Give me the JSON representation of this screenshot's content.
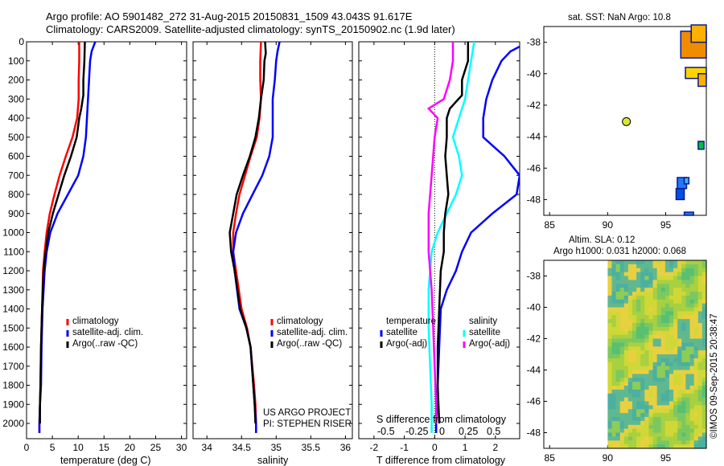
{
  "header": {
    "line1": "Argo profile: AO 5901482_272 31-Aug-2015 20150831_1509 43.043S 91.617E",
    "line2": "Climatology: CARS2009. Satellite-adjusted climatology: synTS_20150902.nc (1.9d later)"
  },
  "colors": {
    "climatology": "#ff0000",
    "satellite": "#0000ff",
    "argo": "#000000",
    "sat_diff": "#00ffff",
    "argo_s_diff": "#ff00ff"
  },
  "chart_data": [
    {
      "type": "line",
      "id": "temperature",
      "xlabel": "temperature (deg C)",
      "ylabel": "",
      "xlim": [
        0,
        31
      ],
      "ylim": [
        2080,
        0
      ],
      "xticks": [
        0,
        5,
        10,
        15,
        20,
        25,
        30
      ],
      "yticks": [
        0,
        100,
        200,
        300,
        400,
        500,
        600,
        700,
        800,
        900,
        1000,
        1100,
        1200,
        1300,
        1400,
        1500,
        1600,
        1700,
        1800,
        1900,
        2000
      ],
      "legend": [
        "climatology",
        "satellite-adj. clim.",
        "Argo(..raw -QC)"
      ],
      "series": [
        {
          "name": "climatology",
          "color": "#ff0000",
          "points": [
            [
              10.2,
              0
            ],
            [
              10.2,
              100
            ],
            [
              10.1,
              200
            ],
            [
              10.1,
              300
            ],
            [
              9.8,
              400
            ],
            [
              8.9,
              500
            ],
            [
              7.6,
              600
            ],
            [
              6.4,
              700
            ],
            [
              5.4,
              800
            ],
            [
              4.5,
              900
            ],
            [
              3.9,
              1000
            ],
            [
              3.5,
              1100
            ],
            [
              3.2,
              1200
            ],
            [
              3.0,
              1400
            ],
            [
              2.8,
              1600
            ],
            [
              2.7,
              1800
            ],
            [
              2.6,
              1900
            ],
            [
              2.5,
              2000
            ],
            [
              2.5,
              2050
            ]
          ]
        },
        {
          "name": "satellite-adj. clim.",
          "color": "#0000ff",
          "points": [
            [
              13.3,
              0
            ],
            [
              12.6,
              50
            ],
            [
              12.3,
              100
            ],
            [
              12.1,
              200
            ],
            [
              11.9,
              300
            ],
            [
              11.7,
              400
            ],
            [
              11.5,
              500
            ],
            [
              11.0,
              600
            ],
            [
              10.0,
              700
            ],
            [
              8.0,
              800
            ],
            [
              6.0,
              900
            ],
            [
              4.6,
              1000
            ],
            [
              3.9,
              1100
            ],
            [
              3.5,
              1200
            ],
            [
              3.1,
              1400
            ],
            [
              2.9,
              1600
            ],
            [
              2.8,
              1800
            ],
            [
              2.6,
              1900
            ],
            [
              2.5,
              2000
            ],
            [
              2.5,
              2050
            ]
          ]
        },
        {
          "name": "Argo(..raw -QC)",
          "color": "#000000",
          "points": [
            [
              11.3,
              0
            ],
            [
              11.2,
              100
            ],
            [
              11.0,
              200
            ],
            [
              11.0,
              280
            ],
            [
              10.6,
              350
            ],
            [
              10.2,
              400
            ],
            [
              9.7,
              500
            ],
            [
              8.6,
              600
            ],
            [
              7.3,
              700
            ],
            [
              6.2,
              800
            ],
            [
              5.1,
              900
            ],
            [
              4.2,
              1000
            ],
            [
              3.7,
              1100
            ],
            [
              3.3,
              1200
            ],
            [
              3.0,
              1400
            ],
            [
              2.8,
              1600
            ],
            [
              2.7,
              1800
            ],
            [
              2.6,
              1900
            ],
            [
              2.6,
              2000
            ]
          ]
        }
      ]
    },
    {
      "type": "line",
      "id": "salinity",
      "xlabel": "salinity",
      "ylabel": "",
      "xlim": [
        33.8,
        36.1
      ],
      "ylim": [
        2080,
        0
      ],
      "xticks": [
        34,
        34.5,
        35,
        35.5,
        36
      ],
      "legend": [
        "climatology",
        "satellite-adj. clim.",
        "Argo(..raw -QC)"
      ],
      "annotations": [
        "US ARGO PROJECT",
        "PI: STEPHEN RISER"
      ],
      "series": [
        {
          "name": "climatology",
          "color": "#ff0000",
          "points": [
            [
              34.78,
              0
            ],
            [
              34.77,
              100
            ],
            [
              34.77,
              200
            ],
            [
              34.78,
              300
            ],
            [
              34.76,
              400
            ],
            [
              34.72,
              500
            ],
            [
              34.63,
              600
            ],
            [
              34.55,
              700
            ],
            [
              34.47,
              800
            ],
            [
              34.42,
              900
            ],
            [
              34.38,
              1000
            ],
            [
              34.38,
              1100
            ],
            [
              34.42,
              1200
            ],
            [
              34.5,
              1400
            ],
            [
              34.58,
              1500
            ],
            [
              34.63,
              1600
            ],
            [
              34.68,
              1800
            ],
            [
              34.7,
              1900
            ],
            [
              34.71,
              2000
            ],
            [
              34.71,
              2050
            ]
          ]
        },
        {
          "name": "satellite-adj. clim.",
          "color": "#0000ff",
          "points": [
            [
              35.05,
              0
            ],
            [
              35.02,
              50
            ],
            [
              35.0,
              100
            ],
            [
              34.98,
              200
            ],
            [
              34.95,
              300
            ],
            [
              34.95,
              400
            ],
            [
              34.95,
              500
            ],
            [
              34.9,
              600
            ],
            [
              34.8,
              700
            ],
            [
              34.66,
              800
            ],
            [
              34.52,
              900
            ],
            [
              34.42,
              1000
            ],
            [
              34.38,
              1100
            ],
            [
              34.4,
              1200
            ],
            [
              34.47,
              1400
            ],
            [
              34.57,
              1500
            ],
            [
              34.63,
              1600
            ],
            [
              34.67,
              1800
            ],
            [
              34.69,
              1900
            ],
            [
              34.71,
              2000
            ],
            [
              34.71,
              2050
            ]
          ]
        },
        {
          "name": "Argo(..raw -QC)",
          "color": "#000000",
          "points": [
            [
              34.84,
              0
            ],
            [
              34.85,
              60
            ],
            [
              34.83,
              100
            ],
            [
              34.82,
              200
            ],
            [
              34.78,
              300
            ],
            [
              34.75,
              400
            ],
            [
              34.7,
              500
            ],
            [
              34.62,
              600
            ],
            [
              34.52,
              700
            ],
            [
              34.43,
              800
            ],
            [
              34.38,
              900
            ],
            [
              34.33,
              1000
            ],
            [
              34.35,
              1100
            ],
            [
              34.4,
              1200
            ],
            [
              34.48,
              1400
            ],
            [
              34.57,
              1500
            ],
            [
              34.63,
              1600
            ],
            [
              34.67,
              1800
            ],
            [
              34.69,
              1900
            ],
            [
              34.7,
              2000
            ]
          ]
        }
      ]
    },
    {
      "type": "line",
      "id": "difference",
      "xlabel": "T difference from climatology",
      "xlabel_top": "S difference from climatology",
      "xlim": [
        -2.5,
        2.8
      ],
      "ylim": [
        2080,
        0
      ],
      "xticks": [
        -2,
        -1,
        0,
        1,
        2
      ],
      "s_ticks": [
        "-0.5",
        "-0.25",
        "0",
        "0.25",
        "0.5"
      ],
      "legend_left_title": "temperature",
      "legend_right_title": "salinity",
      "legend": [
        "satellite",
        "Argo(-adj)",
        "satellite",
        "Argo(-adj)"
      ],
      "series": [
        {
          "name": "temperature satellite",
          "color": "#0000ff",
          "points": [
            [
              3.1,
              0
            ],
            [
              2.5,
              50
            ],
            [
              2.2,
              100
            ],
            [
              1.9,
              200
            ],
            [
              1.7,
              300
            ],
            [
              1.6,
              400
            ],
            [
              1.6,
              500
            ],
            [
              2.3,
              600
            ],
            [
              2.8,
              700
            ],
            [
              2.7,
              800
            ],
            [
              1.9,
              900
            ],
            [
              1.2,
              1000
            ],
            [
              0.9,
              1100
            ],
            [
              0.7,
              1200
            ],
            [
              0.4,
              1300
            ],
            [
              0.2,
              1400
            ],
            [
              0.15,
              1600
            ],
            [
              0.1,
              1800
            ],
            [
              0.05,
              2000
            ],
            [
              0.05,
              2050
            ]
          ]
        },
        {
          "name": "salinity satellite",
          "color": "#00ffff",
          "points": [
            [
              1.3,
              0
            ],
            [
              1.2,
              100
            ],
            [
              1.1,
              200
            ],
            [
              1.0,
              300
            ],
            [
              0.8,
              400
            ],
            [
              0.6,
              500
            ],
            [
              0.8,
              600
            ],
            [
              0.9,
              700
            ],
            [
              0.7,
              800
            ],
            [
              0.4,
              900
            ],
            [
              0.1,
              1000
            ],
            [
              -0.1,
              1100
            ],
            [
              -0.2,
              1300
            ],
            [
              -0.2,
              1500
            ],
            [
              -0.15,
              1700
            ],
            [
              -0.1,
              1900
            ],
            [
              -0.1,
              2000
            ],
            [
              -0.1,
              2050
            ]
          ]
        },
        {
          "name": "salinity Argo(-adj)",
          "color": "#ff00ff",
          "points": [
            [
              0.6,
              0
            ],
            [
              0.6,
              100
            ],
            [
              0.5,
              200
            ],
            [
              0.3,
              300
            ],
            [
              -0.2,
              350
            ],
            [
              0.1,
              400
            ],
            [
              0.0,
              500
            ],
            [
              -0.1,
              700
            ],
            [
              -0.2,
              900
            ],
            [
              -0.2,
              1100
            ],
            [
              -0.1,
              1300
            ],
            [
              -0.05,
              1500
            ],
            [
              0.0,
              1700
            ],
            [
              0.05,
              1900
            ],
            [
              0.05,
              2000
            ]
          ]
        },
        {
          "name": "temperature Argo(-adj)",
          "color": "#000000",
          "points": [
            [
              1.1,
              0
            ],
            [
              1.1,
              100
            ],
            [
              0.9,
              200
            ],
            [
              0.9,
              280
            ],
            [
              0.5,
              350
            ],
            [
              0.4,
              400
            ],
            [
              0.4,
              500
            ],
            [
              0.35,
              600
            ],
            [
              0.4,
              700
            ],
            [
              0.45,
              800
            ],
            [
              0.35,
              900
            ],
            [
              0.3,
              1000
            ],
            [
              0.3,
              1100
            ],
            [
              0.2,
              1200
            ],
            [
              0.15,
              1400
            ],
            [
              0.1,
              1600
            ],
            [
              0.1,
              1800
            ],
            [
              0.15,
              2000
            ]
          ]
        }
      ]
    },
    {
      "type": "heatmap",
      "id": "sst-map",
      "title": "sat. SST: NaN Argo: 10.8",
      "xlim": [
        84.5,
        98.5
      ],
      "ylim": [
        -49,
        -37
      ],
      "xticks": [
        85,
        90,
        95
      ],
      "yticks": [
        -38,
        -40,
        -42,
        -44,
        -46,
        -48
      ],
      "argo_position": {
        "lon": 91.617,
        "lat": -43.043
      }
    },
    {
      "type": "heatmap",
      "id": "sla-map",
      "title_line1": "Altim. SLA: 0.12",
      "title_line2": "Argo h1000: 0.031 h2000: 0.068",
      "xlim": [
        84.5,
        98.5
      ],
      "ylim": [
        -49,
        -37
      ],
      "xticks": [
        85,
        90,
        95
      ],
      "yticks": [
        -38,
        -40,
        -42,
        -44,
        -46,
        -48
      ],
      "data_lon_start": 90
    }
  ],
  "credit": "©IMOS 09-Sep-2015 20:38:47"
}
